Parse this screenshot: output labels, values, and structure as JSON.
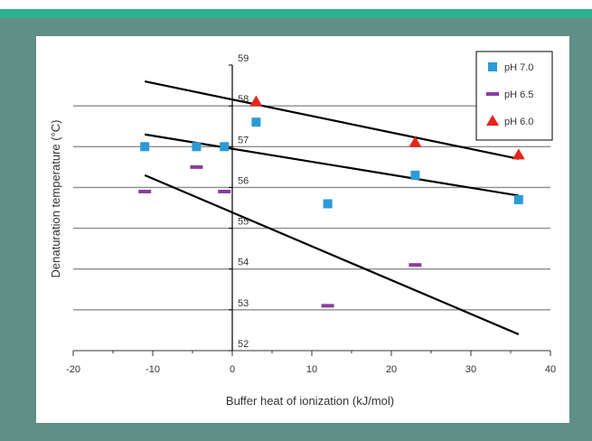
{
  "colors": {
    "frame": "#5f8f87",
    "stripe": "#2bb38f",
    "panel": "#ffffff",
    "ph70": "#2b9bd6",
    "ph65": "#8a3d9c",
    "ph60": "#e5261d",
    "gridline": "#8c8c8c",
    "fitline": "#000000"
  },
  "chart_data": {
    "type": "scatter",
    "title": "",
    "xlabel": "Buffer heat of ionization (kJ/mol)",
    "ylabel": "Denaturation temperature (°C)",
    "xlim": [
      -20,
      40
    ],
    "ylim": [
      52,
      59
    ],
    "xticks": [
      "-20",
      "-10",
      "0",
      "10",
      "20",
      "30",
      "40"
    ],
    "yticks": [
      "52",
      "53",
      "54",
      "55",
      "56",
      "57",
      "58",
      "59"
    ],
    "ygrid": [
      53,
      54,
      55,
      56,
      57,
      58
    ],
    "legend_position": "top-right",
    "series": [
      {
        "name": "pH 7.0",
        "marker": "square",
        "color": "#2b9bd6",
        "points": [
          [
            -11,
            57
          ],
          [
            -4.5,
            57
          ],
          [
            -1,
            57
          ],
          [
            3,
            57.6
          ],
          [
            12,
            55.6
          ],
          [
            23,
            56.3
          ],
          [
            36,
            55.7
          ]
        ],
        "fit": [
          [
            -11,
            57.3
          ],
          [
            36,
            55.8
          ]
        ]
      },
      {
        "name": "pH 6.5",
        "marker": "dash",
        "color": "#8a3d9c",
        "points": [
          [
            -11,
            55.9
          ],
          [
            -4.5,
            56.5
          ],
          [
            -1,
            55.9
          ],
          [
            12,
            53.1
          ],
          [
            23,
            54.1
          ]
        ],
        "fit": [
          [
            -11,
            56.3
          ],
          [
            36,
            52.4
          ]
        ]
      },
      {
        "name": "pH 6.0",
        "marker": "triangle",
        "color": "#e5261d",
        "points": [
          [
            3,
            58.1
          ],
          [
            23,
            57.1
          ],
          [
            36,
            56.8
          ]
        ],
        "fit": [
          [
            -11,
            58.6
          ],
          [
            36,
            56.7
          ]
        ]
      }
    ]
  }
}
